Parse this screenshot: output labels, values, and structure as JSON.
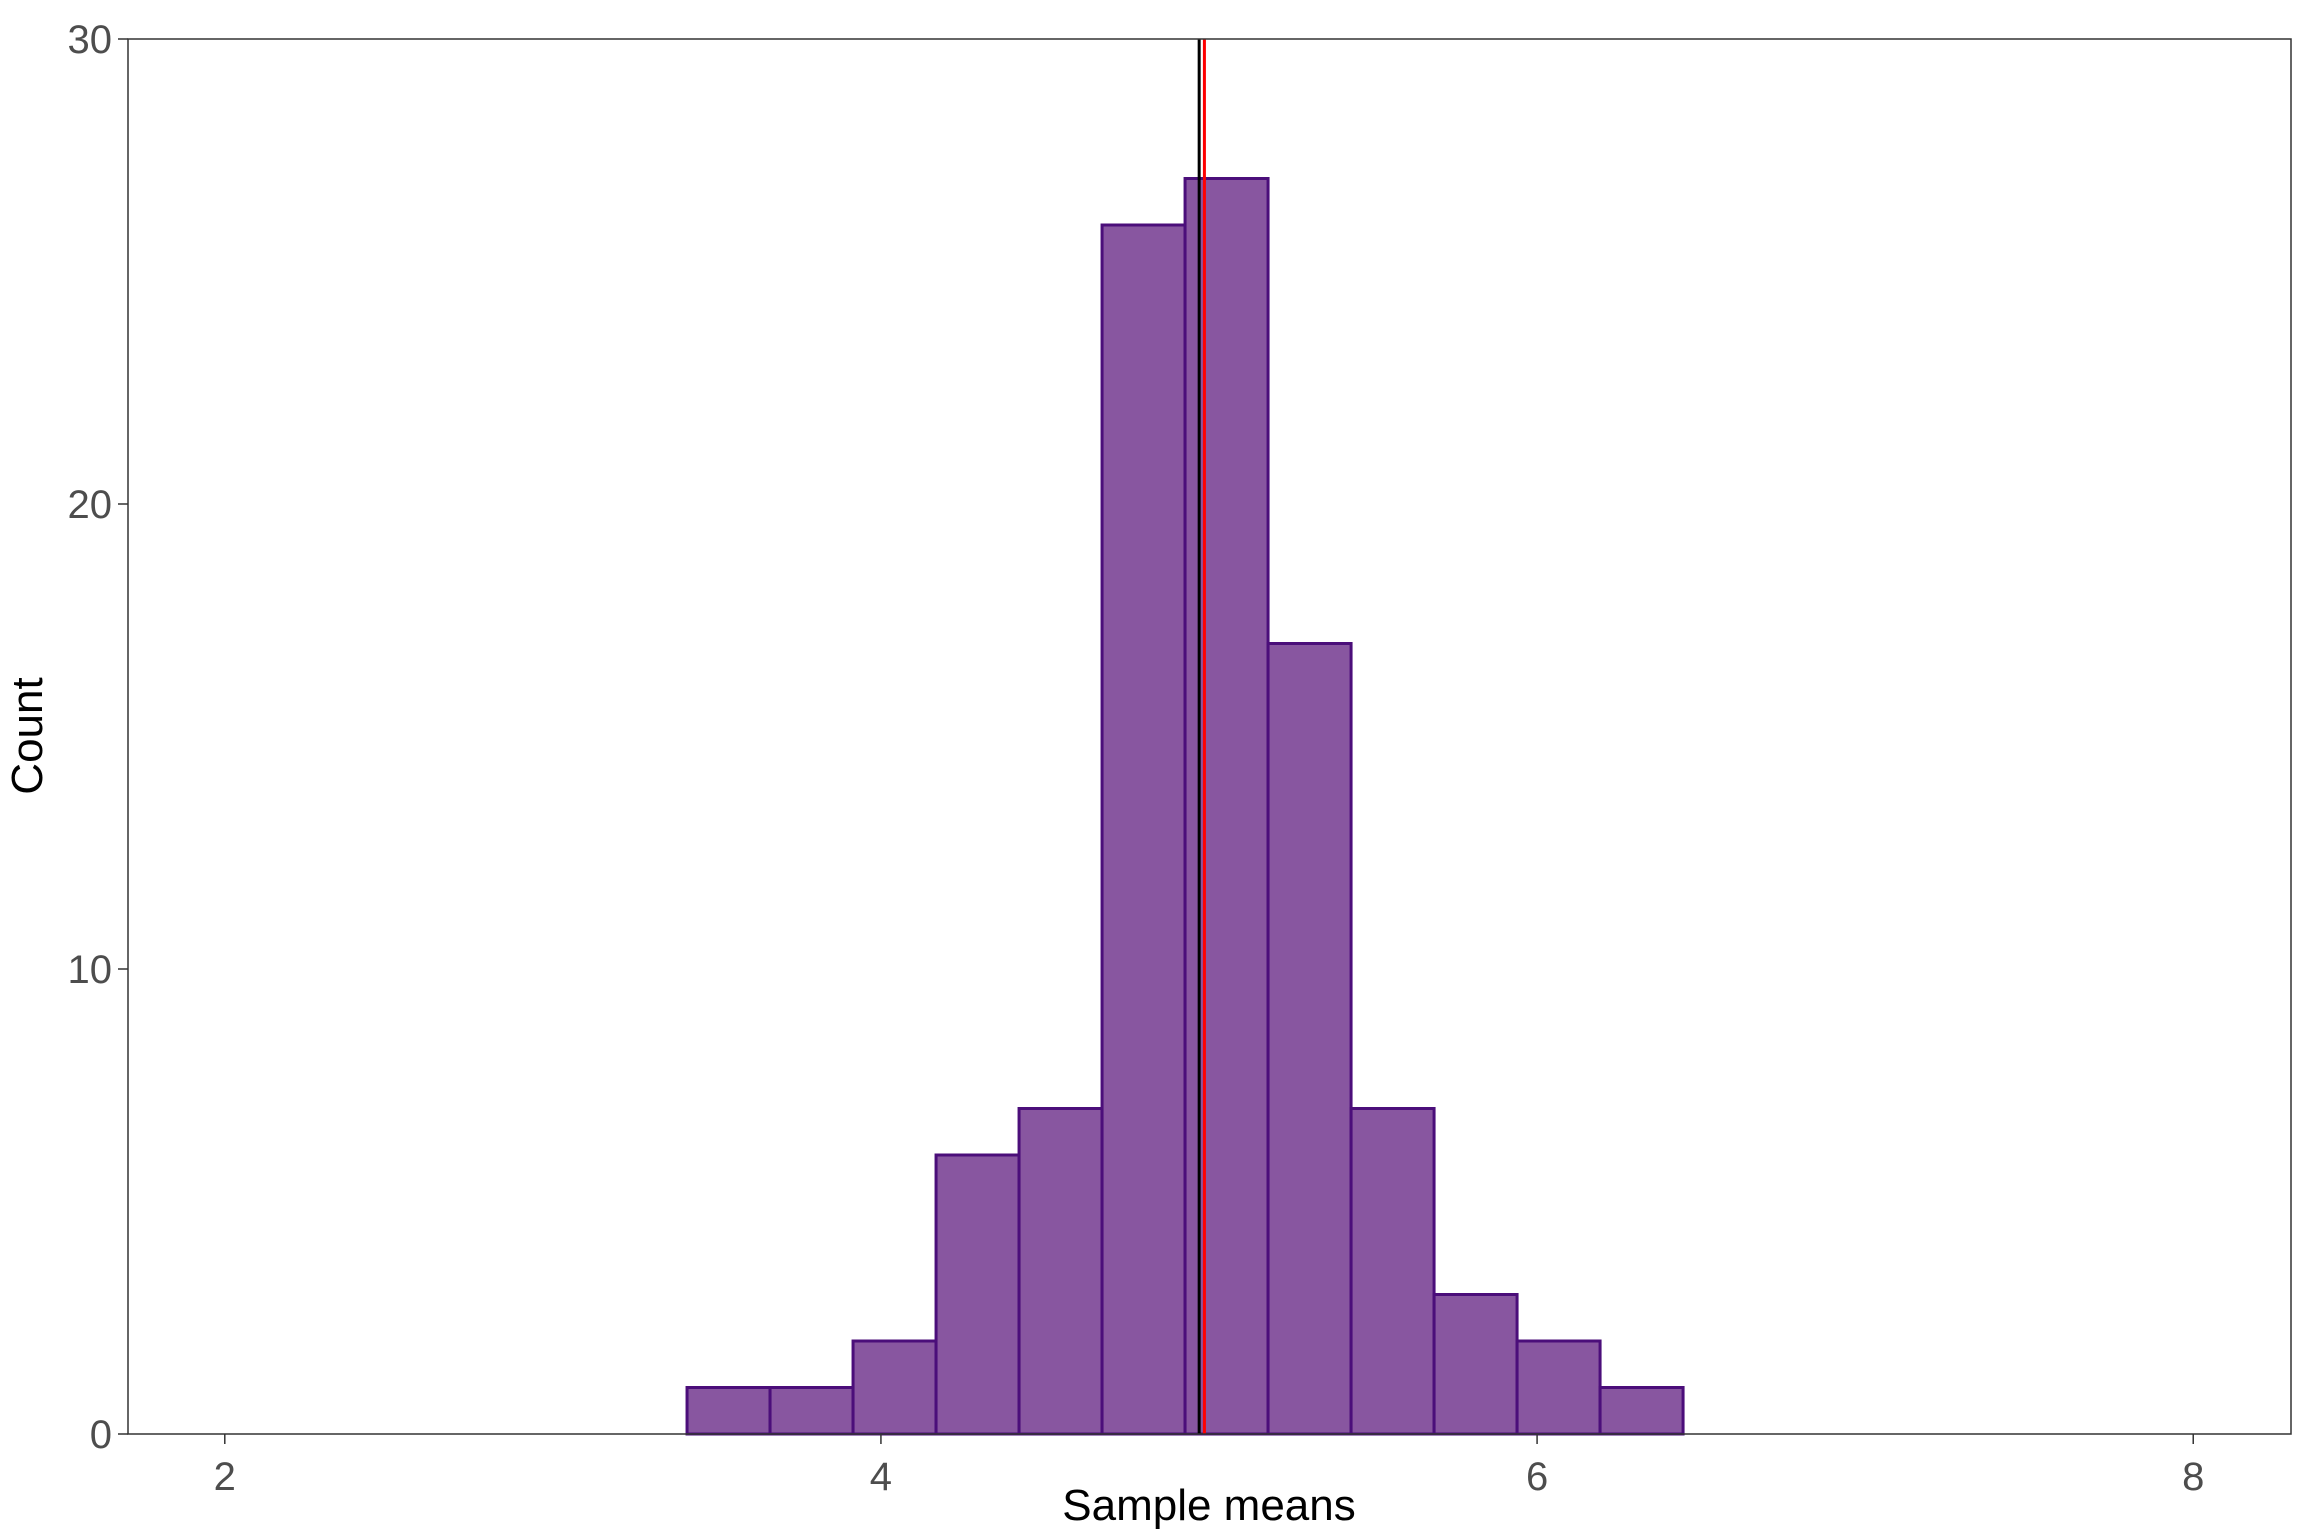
{
  "chart_data": {
    "type": "bar",
    "title": "",
    "xlabel": "Sample means",
    "ylabel": "Count",
    "xlim": [
      1.705,
      8.298
    ],
    "ylim": [
      0,
      30
    ],
    "grid": false,
    "x_ticks": [
      2,
      4,
      6,
      8
    ],
    "x_tick_labels": [
      "2",
      "4",
      "6",
      "8"
    ],
    "y_ticks": [
      0,
      10,
      20,
      30
    ],
    "y_tick_labels": [
      "0",
      "10",
      "20",
      "30"
    ],
    "bin_edges": [
      3.409,
      3.662,
      3.915,
      4.168,
      4.421,
      4.674,
      4.927,
      5.18,
      5.433,
      5.686,
      5.939,
      6.192,
      6.445
    ],
    "values": [
      1,
      1,
      2,
      6,
      7,
      26,
      27,
      17,
      7,
      3,
      2,
      1
    ],
    "vlines": [
      {
        "name": "sample-mean-line",
        "x": 4.97,
        "color": "#000000"
      },
      {
        "name": "population-mean-line",
        "x": 4.986,
        "color": "#ff0000"
      }
    ],
    "colors": {
      "fill": "#8856a0",
      "stroke": "#4b0e7a"
    }
  }
}
